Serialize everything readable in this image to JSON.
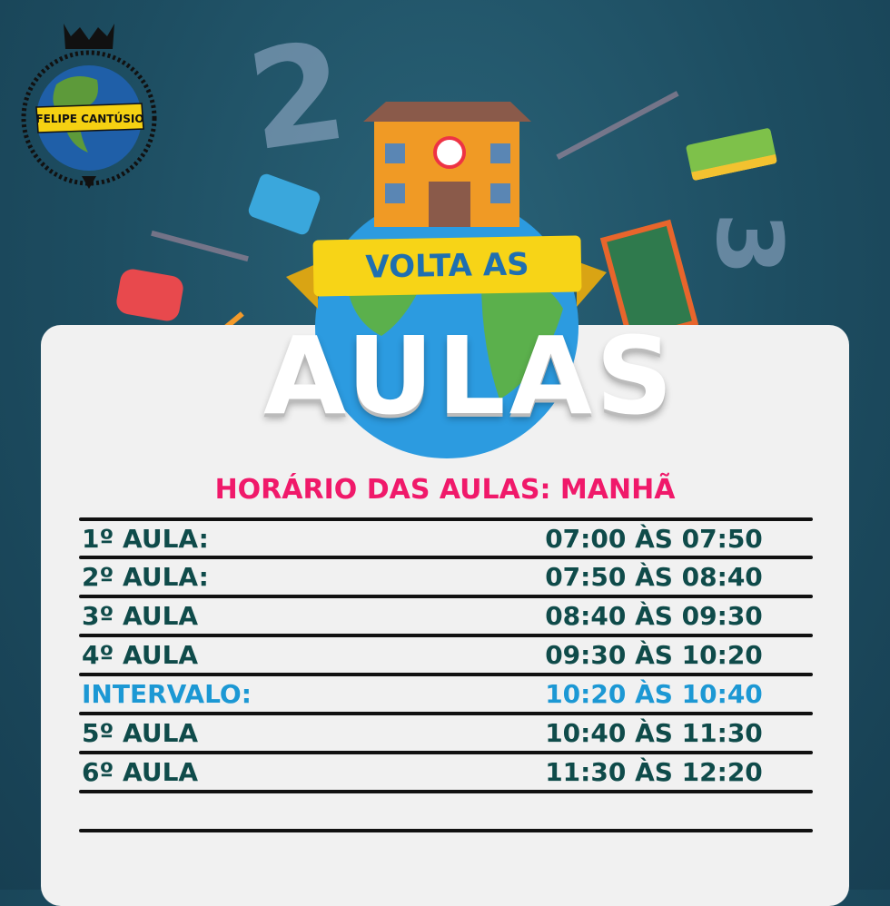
{
  "logo": {
    "banner_text": "FELIPE CANTÚSIO"
  },
  "hero": {
    "ribbon_text": "VOLTA AS",
    "big_text": "AULAS"
  },
  "schedule": {
    "title": "HORÁRIO DAS AULAS: MANHÃ",
    "rows": [
      {
        "label": "1º AULA:",
        "time": "07:00 ÀS 07:50"
      },
      {
        "label": "2º AULA:",
        "time": "07:50 ÀS 08:40"
      },
      {
        "label": "3º AULA",
        "time": "08:40 ÀS 09:30"
      },
      {
        "label": "4º AULA",
        "time": "09:30 ÀS 10:20"
      },
      {
        "label": "INTERVALO:",
        "time": "10:20 ÀS 10:40",
        "highlight": true
      },
      {
        "label": "5º AULA",
        "time": "10:40 ÀS 11:30"
      },
      {
        "label": "6º AULA",
        "time": "11:30 ÀS 12:20"
      }
    ]
  },
  "colors": {
    "background": "#1d4d61",
    "title": "#f0196a",
    "text": "#0f4b4a",
    "highlight": "#1c98d4",
    "ribbon": "#f7d417"
  }
}
